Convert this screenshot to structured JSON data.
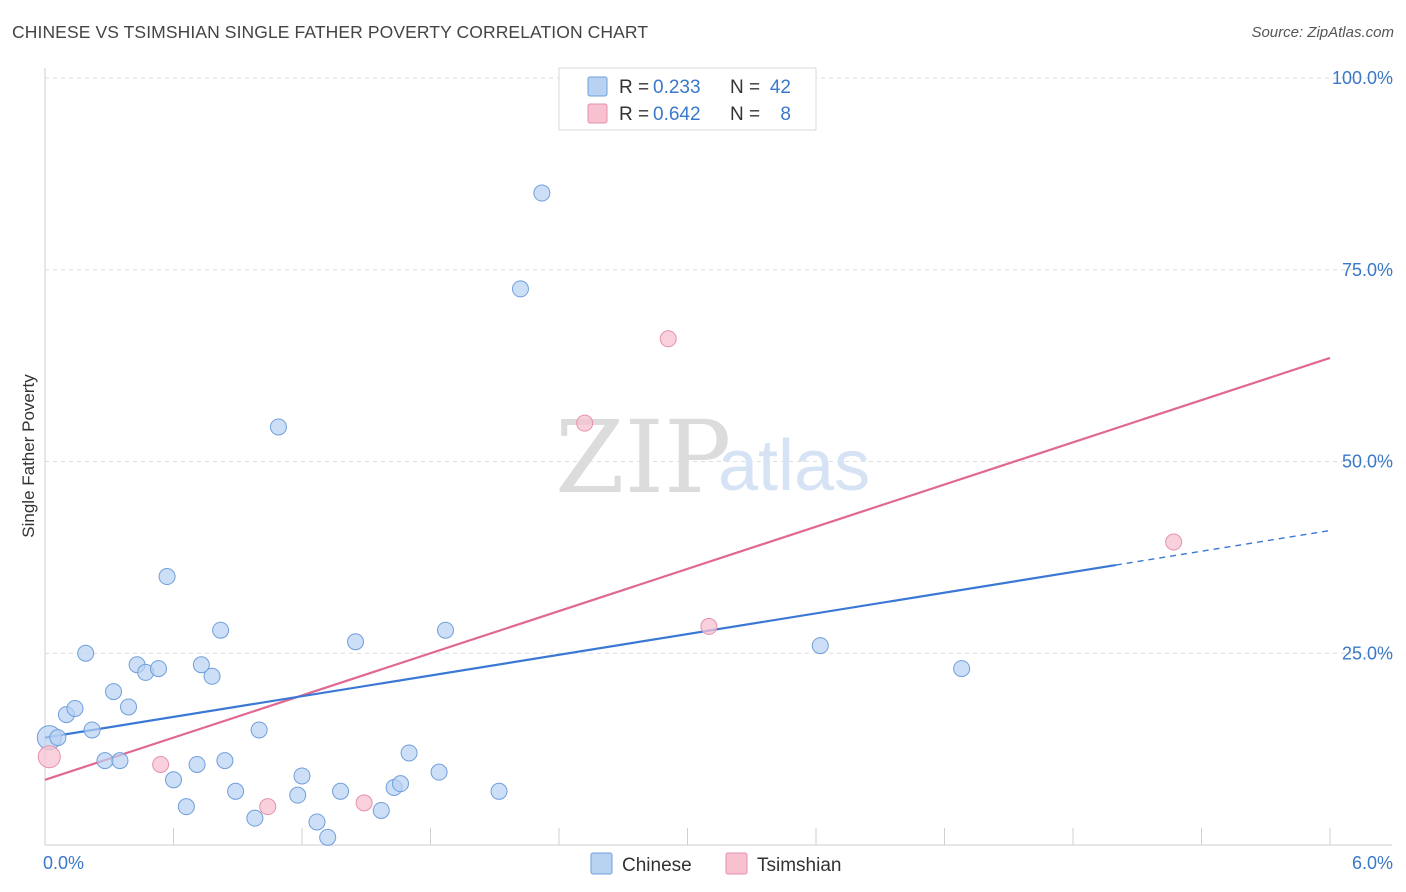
{
  "title": "CHINESE VS TSIMSHIAN SINGLE FATHER POVERTY CORRELATION CHART",
  "source": "Source: ZipAtlas.com",
  "watermark": {
    "zip": "ZIP",
    "atlas": "atlas"
  },
  "colors": {
    "chinese": "#3a78d4",
    "chinese_fill": "#b8d2f2",
    "tsimshian": "#e06892",
    "tsimshian_fill": "#f7c1d0",
    "label_blue": "#3a78c8"
  },
  "chart_data": {
    "type": "scatter",
    "title": "CHINESE VS TSIMSHIAN SINGLE FATHER POVERTY CORRELATION CHART",
    "xlabel": "",
    "ylabel": "Single Father Poverty",
    "xlim": [
      0,
      6
    ],
    "ylim": [
      0,
      100
    ],
    "x_tick_labels": [
      "0.0%",
      "6.0%"
    ],
    "y_ticks": [
      25,
      50,
      75,
      100
    ],
    "y_tick_labels": [
      "25.0%",
      "50.0%",
      "75.0%",
      "100.0%"
    ],
    "grid": true,
    "legend_position": "top-center",
    "stats": [
      {
        "r_label": "R =",
        "r_value": "0.233",
        "n_label": "N =",
        "n_value": "42"
      },
      {
        "r_label": "R =",
        "r_value": "0.642",
        "n_label": "N =",
        "n_value": "8"
      }
    ],
    "series": [
      {
        "name": "Chinese",
        "points": [
          [
            0.02,
            14.0
          ],
          [
            0.06,
            14.0
          ],
          [
            0.1,
            17.0
          ],
          [
            0.14,
            17.8
          ],
          [
            0.19,
            25.0
          ],
          [
            0.22,
            15.0
          ],
          [
            0.28,
            11.0
          ],
          [
            0.32,
            20.0
          ],
          [
            0.35,
            11.0
          ],
          [
            0.39,
            18.0
          ],
          [
            0.43,
            23.5
          ],
          [
            0.47,
            22.5
          ],
          [
            0.53,
            23.0
          ],
          [
            0.57,
            35.0
          ],
          [
            0.6,
            8.5
          ],
          [
            0.66,
            5.0
          ],
          [
            0.71,
            10.5
          ],
          [
            0.73,
            23.5
          ],
          [
            0.78,
            22.0
          ],
          [
            0.82,
            28.0
          ],
          [
            0.84,
            11.0
          ],
          [
            0.89,
            7.0
          ],
          [
            0.98,
            3.5
          ],
          [
            1.0,
            15.0
          ],
          [
            1.09,
            54.5
          ],
          [
            1.18,
            6.5
          ],
          [
            1.2,
            9.0
          ],
          [
            1.27,
            3.0
          ],
          [
            1.32,
            1.0
          ],
          [
            1.38,
            7.0
          ],
          [
            1.45,
            26.5
          ],
          [
            1.57,
            4.5
          ],
          [
            1.63,
            7.5
          ],
          [
            1.66,
            8.0
          ],
          [
            1.7,
            12.0
          ],
          [
            1.84,
            9.5
          ],
          [
            1.87,
            28.0
          ],
          [
            2.12,
            7.0
          ],
          [
            2.22,
            72.5
          ],
          [
            2.32,
            85.0
          ],
          [
            3.62,
            26.0
          ],
          [
            4.28,
            23.0
          ]
        ],
        "trend": {
          "x": [
            0,
            5.0
          ],
          "y": [
            14.0,
            36.5
          ],
          "dashed_extension": {
            "x": [
              5.0,
              6.0
            ],
            "y": [
              36.5,
              41.0
            ]
          }
        }
      },
      {
        "name": "Tsimshian",
        "points": [
          [
            0.02,
            11.5
          ],
          [
            0.54,
            10.5
          ],
          [
            1.04,
            5.0
          ],
          [
            1.49,
            5.5
          ],
          [
            2.52,
            55.0
          ],
          [
            2.91,
            66.0
          ],
          [
            3.1,
            28.5
          ],
          [
            5.27,
            39.5
          ]
        ],
        "trend": {
          "x": [
            0,
            6.0
          ],
          "y": [
            8.5,
            63.5
          ]
        }
      }
    ]
  }
}
